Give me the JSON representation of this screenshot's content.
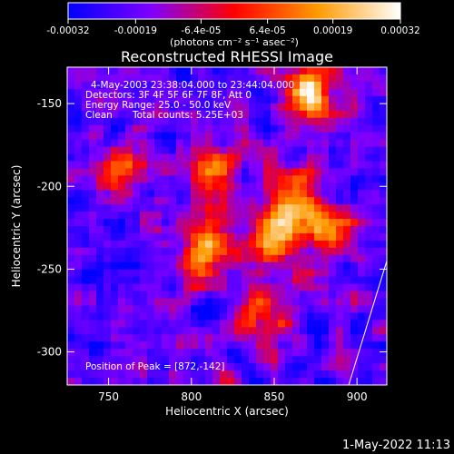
{
  "colorbar": {
    "ticks": [
      "-0.00032",
      "-0.00019",
      "-6.4e-05",
      "6.4e-05",
      "0.00019",
      "0.00032"
    ],
    "tick_values": [
      -0.00032,
      -0.00019,
      -6.4e-05,
      6.4e-05,
      0.00019,
      0.00032
    ],
    "range": [
      -0.00032,
      0.00032
    ],
    "unit_label": "(photons cm⁻² s⁻¹ asec⁻²)",
    "colors": [
      "#0000ff",
      "#7f00ff",
      "#ff0000",
      "#ff9a00",
      "#ffffff"
    ]
  },
  "chart_data": {
    "type": "heatmap",
    "title": "Reconstructed RHESSI Image",
    "xlabel": "Heliocentric X (arcsec)",
    "ylabel": "Heliocentric Y (arcsec)",
    "xlim": [
      725,
      918
    ],
    "ylim": [
      -320,
      -128
    ],
    "xticks": [
      750,
      800,
      850,
      900
    ],
    "yticks": [
      -150,
      -200,
      -250,
      -300
    ],
    "annotations": {
      "time": "4-May-2003 23:38:04.000 to 23:44:04.000",
      "detectors": "Detectors: 3F 4F 5F 6F 7F 8F, Att 0",
      "energy": "Energy Range: 25.0 - 50.0 keV",
      "clean": "Clean",
      "counts": "Total counts: 5.25E+03",
      "peak": "Position of Peak = [872,-142]"
    },
    "peak": [
      872,
      -142
    ],
    "bright_sources": [
      {
        "x": 872,
        "y": -142,
        "level": 0.95
      },
      {
        "x": 850,
        "y": -230,
        "level": 0.85
      },
      {
        "x": 860,
        "y": -210,
        "level": 0.7
      },
      {
        "x": 883,
        "y": -225,
        "level": 0.75
      },
      {
        "x": 808,
        "y": -240,
        "level": 0.75
      },
      {
        "x": 812,
        "y": -190,
        "level": 0.65
      },
      {
        "x": 760,
        "y": -190,
        "level": 0.6
      },
      {
        "x": 840,
        "y": -280,
        "level": 0.6
      }
    ],
    "limb_line": [
      [
        895,
        -320
      ],
      [
        918,
        -245
      ]
    ]
  },
  "footer_timestamp": "1-May-2022 11:13"
}
